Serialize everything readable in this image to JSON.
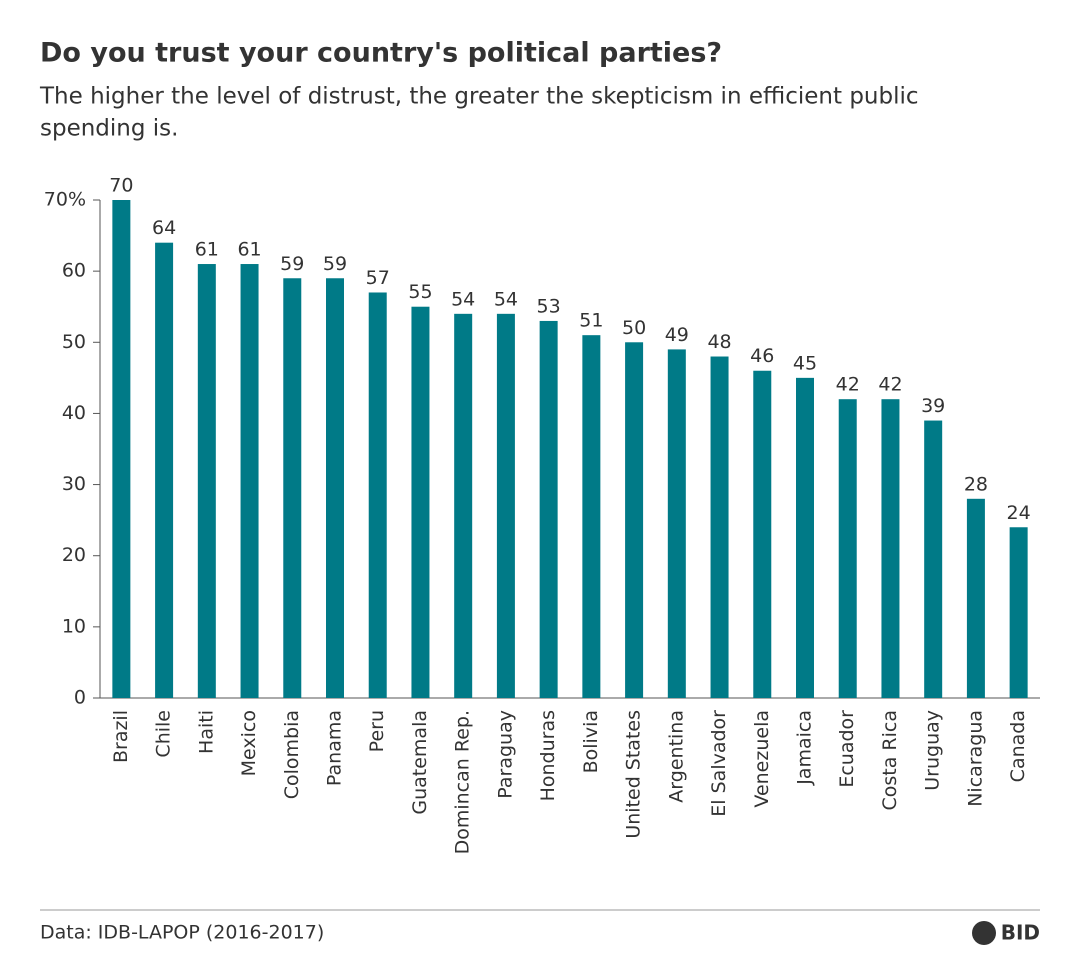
{
  "chart_data": {
    "type": "bar",
    "title": "Do you trust your country's political parties?",
    "subtitle": [
      "The higher the level of distrust, the greater the skepticism in efficient public",
      "spending is."
    ],
    "categories": [
      "Brazil",
      "Chile",
      "Haiti",
      "Mexico",
      "Colombia",
      "Panama",
      "Peru",
      "Guatemala",
      "Domincan Rep.",
      "Paraguay",
      "Honduras",
      "Bolivia",
      "United States",
      "Argentina",
      "El Salvador",
      "Venezuela",
      "Jamaica",
      "Ecuador",
      "Costa Rica",
      "Uruguay",
      "Nicaragua",
      "Canada"
    ],
    "values": [
      70,
      64,
      61,
      61,
      59,
      59,
      57,
      55,
      54,
      54,
      53,
      51,
      50,
      49,
      48,
      46,
      45,
      42,
      42,
      39,
      28,
      24
    ],
    "color": "#007a87",
    "ylim": [
      0,
      70
    ],
    "yticks": [
      0,
      10,
      20,
      30,
      40,
      50,
      60,
      {
        "value": 70,
        "label": "70%"
      }
    ],
    "grid": false,
    "source": "Data: IDB-LAPOP (2016-2017)",
    "logo": "BID"
  }
}
